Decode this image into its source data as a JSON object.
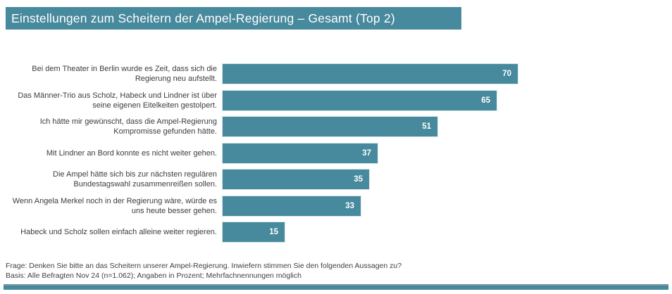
{
  "header": {
    "title": "Einstellungen zum Scheitern der Ampel-Regierung – Gesamt (Top 2)"
  },
  "chart_data": {
    "type": "bar",
    "orientation": "horizontal",
    "title": "Einstellungen zum Scheitern der Ampel-Regierung – Gesamt (Top 2)",
    "categories": [
      "Bei dem Theater in Berlin wurde es Zeit, dass sich die Regierung neu aufstellt.",
      "Das Männer-Trio aus Scholz, Habeck und Lindner ist über seine eigenen Eitelkeiten gestolpert.",
      "Ich hätte mir gewünscht, dass die Ampel-Regierung Kompromisse gefunden hätte.",
      "Mit Lindner an Bord konnte es nicht weiter gehen.",
      "Die Ampel hätte sich bis zur nächsten regulären Bundestagswahl zusammenreißen sollen.",
      "Wenn Angela Merkel noch in der Regierung wäre, würde es uns heute besser gehen.",
      "Habeck und Scholz sollen einfach alleine weiter regieren."
    ],
    "values": [
      70,
      65,
      51,
      37,
      35,
      33,
      15
    ],
    "value_unit": "Prozent",
    "xlim": [
      0,
      100
    ],
    "grid": false,
    "legend": false,
    "value_labels": "inside-end"
  },
  "footer": {
    "question": "Frage: Denken Sie bitte an das Scheitern unserer Ampel-Regierung. Inwiefern stimmen Sie den folgenden Aussagen zu?",
    "basis": "Basis: Alle Befragten Nov 24 (n=1.062); Angaben in Prozent; Mehrfachnennungen möglich"
  },
  "colors": {
    "accent_teal": "#47899d",
    "banner_background": "#47899d",
    "bar_fill": "#47899d",
    "value_label_text": "#ffffff",
    "body_text": "#3c3c3c"
  }
}
